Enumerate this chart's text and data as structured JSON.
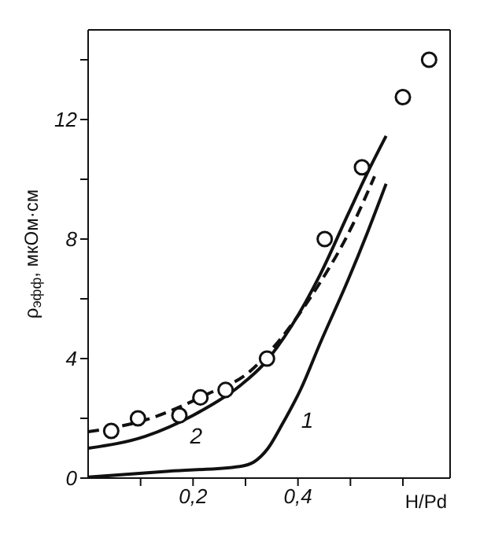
{
  "chart_data": {
    "type": "line",
    "ylabel": "ρ$_{эфф}$, мкОм·см",
    "xlabel": "H/Pd",
    "xlim": [
      0,
      0.69
    ],
    "xticks": [
      {
        "value": 0.1,
        "label": null
      },
      {
        "value": 0.2,
        "label": "0,2"
      },
      {
        "value": 0.3,
        "label": null
      },
      {
        "value": 0.4,
        "label": "0,4"
      },
      {
        "value": 0.5,
        "label": null
      },
      {
        "value": 0.6,
        "label": null
      }
    ],
    "ylim": [
      0,
      15
    ],
    "yticks": [
      0,
      {
        "value": 2,
        "label": null
      },
      4,
      {
        "value": 6,
        "label": null
      },
      8,
      {
        "value": 10,
        "label": null
      },
      12,
      {
        "value": 14,
        "label": null
      }
    ],
    "grid": false,
    "legend": false,
    "tick_labels": "xy",
    "series": [
      {
        "name": "1",
        "color": "#111111",
        "line_style": "solid",
        "marker": "none",
        "x": [
          0,
          0.154,
          0.289,
          0.316,
          0.343,
          0.37,
          0.406,
          0.442,
          0.496,
          0.532,
          0.568
        ],
        "values": [
          0.03,
          0.23,
          0.39,
          0.54,
          1.0,
          1.8,
          3.0,
          4.5,
          6.65,
          8.2,
          9.85
        ]
      },
      {
        "name": "2",
        "color": "#111111",
        "line_style": "solid",
        "marker": "none",
        "x": [
          0,
          0.109,
          0.2,
          0.29,
          0.334,
          0.388,
          0.442,
          0.496,
          0.532,
          0.568
        ],
        "values": [
          1.0,
          1.4,
          2.1,
          3.1,
          3.8,
          5.1,
          6.8,
          8.85,
          10.2,
          11.45
        ]
      },
      {
        "color": "#111111",
        "line_style": "dashed",
        "marker": "none",
        "x": [
          0,
          0.11,
          0.226,
          0.307,
          0.352,
          0.424,
          0.505,
          0.546
        ],
        "values": [
          1.55,
          1.95,
          2.8,
          3.55,
          4.35,
          6.05,
          8.5,
          10.1
        ]
      },
      {
        "type": "scatter",
        "color": "#111111",
        "marker": "circle",
        "x": [
          0.044,
          0.095,
          0.174,
          0.214,
          0.262,
          0.341,
          0.451,
          0.522,
          0.6,
          0.65
        ],
        "values": [
          1.58,
          2.0,
          2.1,
          2.7,
          2.95,
          4.0,
          8.0,
          10.4,
          12.75,
          14.0
        ]
      }
    ]
  }
}
